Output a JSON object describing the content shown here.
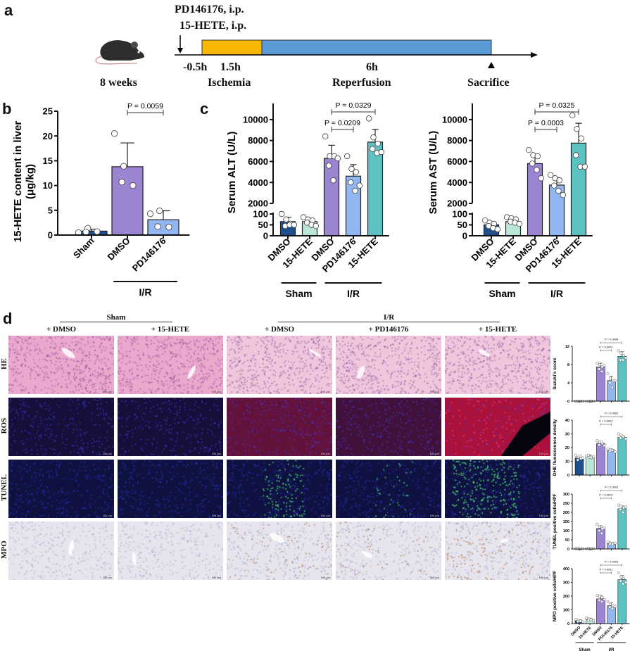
{
  "panels": {
    "a": "a",
    "b": "b",
    "c": "c",
    "d": "d"
  },
  "timeline": {
    "treatment_line1": "PD146176, i.p.",
    "treatment_line2": "15-HETE, i.p.",
    "age": "8 weeks",
    "t_treat": "-0.5h",
    "t_ischemia": "1.5h",
    "t_reperfusion": "6h",
    "ischemia": "Ischemia",
    "reperfusion": "Reperfusion",
    "sacrifice": "Sacrifice",
    "colors": {
      "ischemia": "#f5b700",
      "reperfusion": "#5b9bd5"
    }
  },
  "micro": {
    "groups": [
      "Sham",
      "I/R"
    ],
    "columns": [
      "+ DMSO",
      "+ 15-HETE",
      "+ DMSO",
      "+ PD146176",
      "+ 15-HETE"
    ],
    "rows": [
      "HE",
      "ROS",
      "TUNEL",
      "MPO"
    ],
    "scale_bar": "100 μm"
  },
  "colors": {
    "sham_dmso": "#1f4e8c",
    "sham_hete": "#b9e6d5",
    "ir_dmso": "#9b84d2",
    "ir_pd": "#92b6f2",
    "ir_hete": "#5cc1c3"
  },
  "chart_data": [
    {
      "id": "b",
      "type": "bar",
      "ylabel_line1": "15-HETE content in liver",
      "ylabel_line2": "(μg/kg)",
      "categories": [
        "Sham",
        "DMSO",
        "PD146176"
      ],
      "colors": [
        "#1f4e8c",
        "#9b84d2",
        "#92b6f2"
      ],
      "values": [
        0.8,
        13.8,
        3.1
      ],
      "sd": [
        0.4,
        4.8,
        1.8
      ],
      "points": [
        [
          0.5,
          1.4,
          0.7,
          0.6
        ],
        [
          20.5,
          13.9,
          10.0,
          10.7
        ],
        [
          4.3,
          4.9,
          1.6,
          1.7
        ]
      ],
      "ylim": [
        0,
        25
      ],
      "yticks": [
        0,
        5,
        10,
        15,
        20,
        25
      ],
      "brackets": [
        {
          "from": 1,
          "to": 2,
          "label": "P = 0.0059"
        }
      ],
      "groups": [
        {
          "label": "I/R",
          "from": 1,
          "to": 2
        }
      ]
    },
    {
      "id": "alt",
      "type": "bar",
      "ylabel_line1": "Serum ALT  (U/L)",
      "categories": [
        "DMSO",
        "15-HETE",
        "DMSO",
        "PD146176",
        "15-HETE"
      ],
      "colors": [
        "#1f4e8c",
        "#b9e6d5",
        "#9b84d2",
        "#92b6f2",
        "#5cc1c3"
      ],
      "values": [
        65,
        65,
        6300,
        4600,
        7850
      ],
      "sd": [
        20,
        15,
        1250,
        1100,
        1200
      ],
      "points": [
        [
          100,
          75,
          55,
          45,
          50,
          50
        ],
        [
          85,
          75,
          70,
          60,
          50,
          45
        ],
        [
          8400,
          6500,
          6500,
          5600,
          4200,
          6300
        ],
        [
          6500,
          5300,
          5000,
          4000,
          3200,
          3700
        ],
        [
          10100,
          8300,
          7700,
          7200,
          6800,
          6900
        ]
      ],
      "broken_axis": {
        "lower": [
          0,
          100
        ],
        "upper": [
          2000,
          11000
        ]
      },
      "yticks_lower": [
        0,
        50,
        100
      ],
      "yticks_upper": [
        2000,
        4000,
        6000,
        8000,
        10000
      ],
      "brackets": [
        {
          "from": 2,
          "to": 3,
          "label": "P = 0.0209"
        },
        {
          "from": 2,
          "to": 4,
          "label": "P = 0.0329"
        }
      ],
      "groups": [
        {
          "label": "Sham",
          "from": 0,
          "to": 1
        },
        {
          "label": "I/R",
          "from": 2,
          "to": 4
        }
      ]
    },
    {
      "id": "ast",
      "type": "bar",
      "ylabel_line1": "Serum AST  (U/L)",
      "categories": [
        "DMSO",
        "15-HETE",
        "DMSO",
        "PD146176",
        "15-HETE"
      ],
      "colors": [
        "#1f4e8c",
        "#b9e6d5",
        "#9b84d2",
        "#92b6f2",
        "#5cc1c3"
      ],
      "values": [
        50,
        65,
        5800,
        3750,
        7750
      ],
      "sd": [
        15,
        15,
        800,
        700,
        1900
      ],
      "points": [
        [
          70,
          60,
          55,
          45,
          35,
          30
        ],
        [
          85,
          80,
          75,
          65,
          60,
          55
        ],
        [
          7100,
          6600,
          6500,
          5800,
          5200,
          4400
        ],
        [
          4700,
          4400,
          4200,
          3700,
          3200,
          2800
        ],
        [
          10400,
          9100,
          8200,
          6600,
          5500,
          5500
        ]
      ],
      "broken_axis": {
        "lower": [
          0,
          100
        ],
        "upper": [
          2000,
          11000
        ]
      },
      "yticks_lower": [
        0,
        50,
        100
      ],
      "yticks_upper": [
        2000,
        4000,
        6000,
        8000,
        10000
      ],
      "brackets": [
        {
          "from": 2,
          "to": 3,
          "label": "P = 0.0003"
        },
        {
          "from": 2,
          "to": 4,
          "label": "P = 0.0325"
        }
      ],
      "groups": [
        {
          "label": "Sham",
          "from": 0,
          "to": 1
        },
        {
          "label": "I/R",
          "from": 2,
          "to": 4
        }
      ]
    },
    {
      "id": "suzuki",
      "type": "bar",
      "ylabel_line1": "Suzuki's score",
      "categories": [
        "DMSO",
        "15-HETE",
        "DMSO",
        "PD146176",
        "15-HETE"
      ],
      "colors": [
        "#1f4e8c",
        "#b9e6d5",
        "#9b84d2",
        "#92b6f2",
        "#5cc1c3"
      ],
      "values": [
        0,
        0,
        7.5,
        4.5,
        9.8
      ],
      "sd": [
        0,
        0,
        0.8,
        0.9,
        1.0
      ],
      "points": [
        [
          0,
          0,
          0,
          0,
          0,
          0
        ],
        [
          0,
          0,
          0,
          0,
          0,
          0
        ],
        [
          8.3,
          8,
          7.5,
          7,
          6.5,
          7.8
        ],
        [
          6,
          5,
          4.5,
          4,
          3,
          4.5
        ],
        [
          11,
          10.5,
          10,
          9,
          9,
          9.5
        ]
      ],
      "ylim": [
        0,
        12
      ],
      "yticks": [
        0,
        4,
        8,
        12
      ],
      "brackets": [
        {
          "from": 2,
          "to": 3,
          "label": "P < 0.0001"
        },
        {
          "from": 2,
          "to": 4,
          "label": "P = 0.0004"
        }
      ]
    },
    {
      "id": "dhe",
      "type": "bar",
      "ylabel_line1": "DHE fluorescence density",
      "categories": [
        "DMSO",
        "15-HETE",
        "DMSO",
        "PD146176",
        "15-HETE"
      ],
      "colors": [
        "#1f4e8c",
        "#b9e6d5",
        "#9b84d2",
        "#92b6f2",
        "#5cc1c3"
      ],
      "values": [
        12.5,
        13.5,
        23,
        18,
        27.5
      ],
      "sd": [
        1.2,
        1,
        1.5,
        1,
        1.3
      ],
      "points": [
        [
          14.5,
          13,
          12,
          11,
          14,
          12.5
        ],
        [
          14,
          13,
          12.5,
          14.5,
          13,
          13.5
        ],
        [
          25,
          24,
          23,
          22,
          24,
          21.5
        ],
        [
          19,
          18.5,
          18,
          17.5,
          18,
          17
        ],
        [
          30,
          29,
          28,
          27,
          28,
          26.5
        ]
      ],
      "ylim": [
        0,
        40
      ],
      "yticks": [
        0,
        10,
        20,
        30,
        40
      ],
      "brackets": [
        {
          "from": 2,
          "to": 3,
          "label": "P < 0.0001"
        },
        {
          "from": 2,
          "to": 4,
          "label": "P = 0.0002"
        }
      ]
    },
    {
      "id": "tunel",
      "type": "bar",
      "ylabel_line1": "TUNEL positive cells/HPF",
      "categories": [
        "DMSO",
        "15-HETE",
        "DMSO",
        "PD146176",
        "15-HETE"
      ],
      "colors": [
        "#1f4e8c",
        "#b9e6d5",
        "#9b84d2",
        "#92b6f2",
        "#5cc1c3"
      ],
      "values": [
        2,
        2,
        112,
        30,
        220
      ],
      "sd": [
        1,
        1,
        15,
        5,
        15
      ],
      "points": [
        [
          3,
          2,
          1,
          2,
          3,
          1
        ],
        [
          2,
          3,
          1,
          2,
          2,
          3
        ],
        [
          135,
          120,
          110,
          100,
          85,
          115
        ],
        [
          38,
          33,
          30,
          28,
          25,
          32
        ],
        [
          240,
          235,
          225,
          215,
          200,
          230
        ]
      ],
      "ylim": [
        0,
        300
      ],
      "yticks": [
        0,
        50,
        100,
        150,
        200,
        250,
        300
      ],
      "brackets": [
        {
          "from": 2,
          "to": 3,
          "label": "P < 0.0001"
        },
        {
          "from": 2,
          "to": 4,
          "label": "P < 0.0001"
        }
      ]
    },
    {
      "id": "mpo",
      "type": "bar",
      "ylabel_line1": "MPO positive cells/HPF",
      "categories": [
        "DMSO",
        "15-HETE",
        "DMSO",
        "PD146176",
        "15-HETE"
      ],
      "colors": [
        "#1f4e8c",
        "#b9e6d5",
        "#9b84d2",
        "#92b6f2",
        "#5cc1c3"
      ],
      "values": [
        20,
        30,
        180,
        130,
        320
      ],
      "sd": [
        8,
        8,
        25,
        20,
        30
      ],
      "points": [
        [
          30,
          25,
          20,
          15,
          18,
          12
        ],
        [
          40,
          35,
          30,
          25,
          28,
          22
        ],
        [
          205,
          200,
          190,
          170,
          160,
          175
        ],
        [
          160,
          140,
          130,
          120,
          110,
          125
        ],
        [
          370,
          340,
          330,
          310,
          290,
          300
        ]
      ],
      "ylim": [
        0,
        400
      ],
      "yticks": [
        0,
        100,
        200,
        300,
        400
      ],
      "brackets": [
        {
          "from": 2,
          "to": 3,
          "label": "P = 0.0011"
        },
        {
          "from": 2,
          "to": 4,
          "label": "P < 0.0001"
        }
      ],
      "groups": [
        {
          "label": "Sham",
          "from": 0,
          "to": 1
        },
        {
          "label": "I/R",
          "from": 2,
          "to": 4
        }
      ]
    }
  ]
}
